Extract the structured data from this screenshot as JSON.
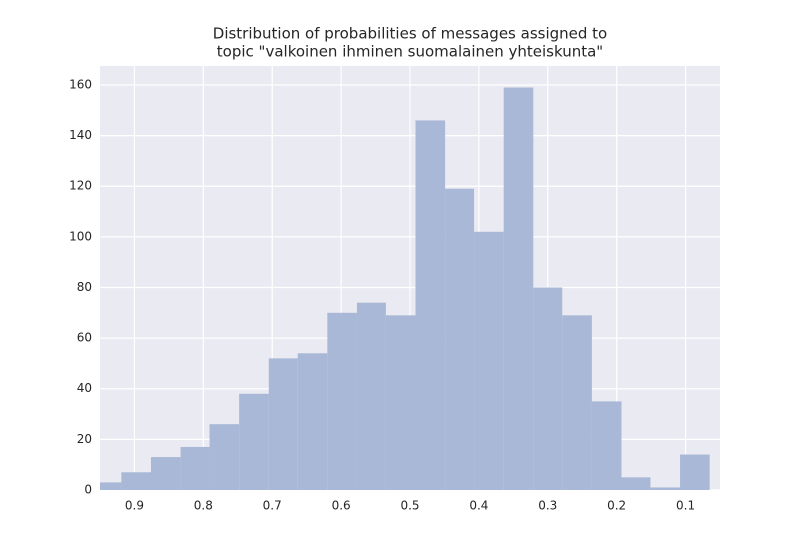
{
  "chart_data": {
    "type": "histogram",
    "title": [
      "Distribution of probabilities of messages assigned to",
      "topic \"valkoinen ihminen suomalainen yhteiskunta\""
    ],
    "bins": [
      0.065,
      0.108,
      0.151,
      0.193,
      0.236,
      0.279,
      0.321,
      0.364,
      0.407,
      0.449,
      0.492,
      0.535,
      0.577,
      0.62,
      0.663,
      0.705,
      0.748,
      0.791,
      0.833,
      0.876,
      0.919,
      0.962
    ],
    "counts": [
      14,
      1,
      5,
      35,
      69,
      80,
      159,
      102,
      119,
      146,
      69,
      74,
      70,
      54,
      52,
      38,
      26,
      17,
      13,
      7,
      3
    ],
    "color": "#a8b8d6",
    "xlim": [
      0.95,
      0.05
    ],
    "xticks": [
      0.9,
      0.8,
      0.7,
      0.6,
      0.5,
      0.4,
      0.3,
      0.2,
      0.1
    ],
    "ylim": [
      0,
      167.5
    ],
    "yticks": [
      0,
      20,
      40,
      60,
      80,
      100,
      120,
      140,
      160
    ],
    "grid": true
  }
}
